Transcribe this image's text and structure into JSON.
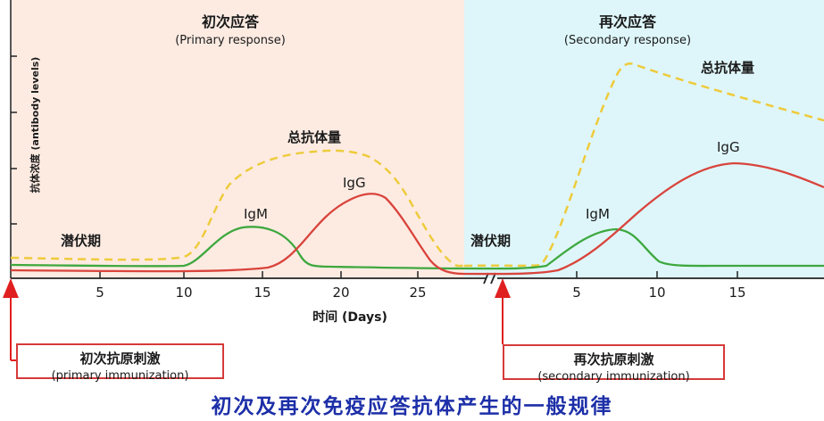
{
  "panels": {
    "primary": {
      "title_cn": "初次应答",
      "title_en": "(Primary response)",
      "bg": "#fdebe2"
    },
    "secondary": {
      "title_cn": "再次应答",
      "title_en": "(Secondary response)",
      "bg": "#def6fa"
    }
  },
  "y_axis_label": "抗体浓度 (antibody levels)",
  "x_axis_label": "时间 (Days)",
  "x_ticks_primary": [
    "5",
    "10",
    "15",
    "20",
    "25"
  ],
  "x_ticks_secondary": [
    "5",
    "10",
    "15"
  ],
  "labels": {
    "latent_primary": "潜伏期",
    "latent_secondary": "潜伏期",
    "igm_primary": "IgM",
    "igg_primary": "IgG",
    "total_primary": "总抗体量",
    "igm_secondary": "IgM",
    "igg_secondary": "IgG",
    "total_secondary": "总抗体量"
  },
  "boxes": {
    "primary": {
      "cn": "初次抗原刺激",
      "en": "(primary immunization)"
    },
    "secondary": {
      "cn": "再次抗原刺激",
      "en": "(secondary immunization)"
    }
  },
  "caption": "初次及再次免疫应答抗体产生的一般规律",
  "colors": {
    "igm": "#3ea83e",
    "igg": "#d9443c",
    "total": "#eecb3c",
    "arrow": "#e02020",
    "axis": "#222222"
  }
}
